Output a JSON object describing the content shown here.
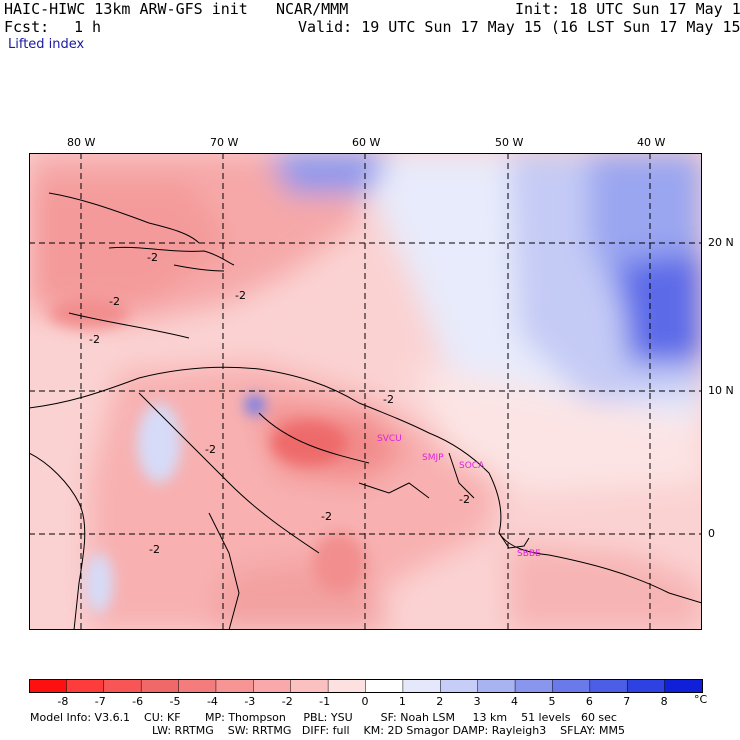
{
  "header": {
    "model": "HAIC-HIWC 13km ARW-GFS init",
    "org": "NCAR/MMM",
    "init": "Init: 18 UTC Sun 17 May 15",
    "fcst_label": "Fcst:",
    "fcst_value": "1 h",
    "valid": "Valid: 19 UTC Sun 17 May 15 (16 LST Sun 17 May 15)",
    "field": "Lifted index"
  },
  "map": {
    "lon_labels": [
      "80 W",
      "70 W",
      "60 W",
      "50 W",
      "40 W"
    ],
    "lat_labels": [
      "20 N",
      "10 N",
      "0"
    ],
    "contour_labels": [
      "-2",
      "-2",
      "-2",
      "-2",
      "-2",
      "-2",
      "-2",
      "-2",
      "-2"
    ],
    "stations": [
      "SVCU",
      "SMJP",
      "SOCA",
      "SBBE"
    ],
    "station_color": "#e020e0"
  },
  "colorbar": {
    "ticks": [
      "-8",
      "-7",
      "-6",
      "-5",
      "-4",
      "-3",
      "-2",
      "-1",
      "0",
      "1",
      "2",
      "3",
      "4",
      "5",
      "6",
      "7",
      "8"
    ],
    "unit": "°C",
    "colors": [
      "#ff1010",
      "#ff3c3c",
      "#f85656",
      "#f06868",
      "#f47c7c",
      "#f79494",
      "#f9a9a9",
      "#fbc1c1",
      "#fde0e0",
      "#ffffff",
      "#e4e8fa",
      "#c6cdf6",
      "#a8b3f2",
      "#8896ee",
      "#6a7aea",
      "#4c5de6",
      "#2e41e2",
      "#1020d8"
    ]
  },
  "footer": {
    "line1": "Model Info: V3.6.1    CU: KF       MP: Thompson     PBL: YSU        SF: Noah LSM     13 km    51 levels   60 sec",
    "line2": "LW: RRTMG    SW: RRTMG   DIFF: full    KM: 2D Smagor DAMP: Rayleigh3    SFLAY: MM5"
  }
}
